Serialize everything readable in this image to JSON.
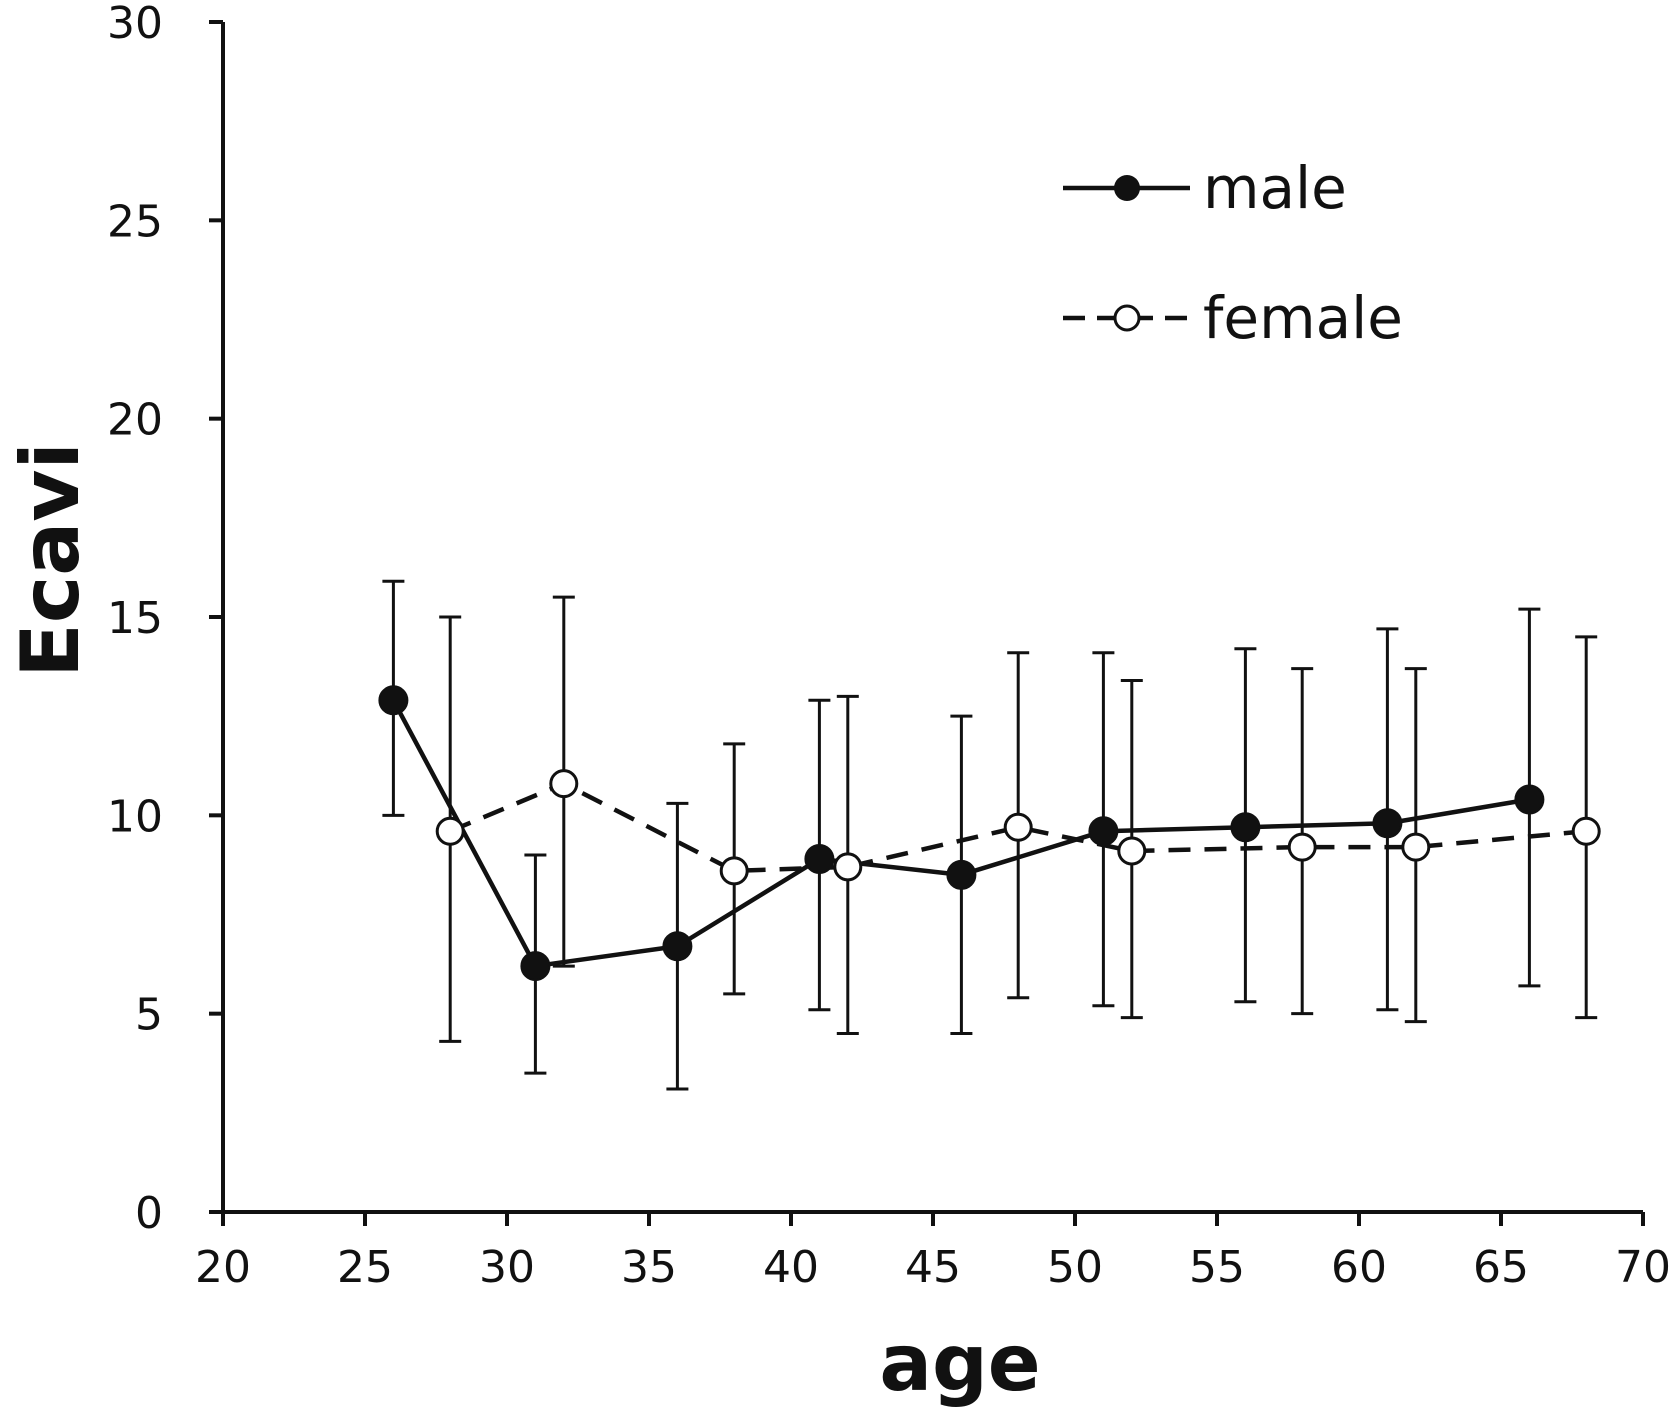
{
  "chart_data": {
    "type": "line",
    "title": "",
    "xlabel": "age",
    "ylabel": "Ecavi",
    "xlim": [
      20,
      70
    ],
    "ylim": [
      0,
      30
    ],
    "xticks": [
      20,
      25,
      30,
      35,
      40,
      45,
      50,
      55,
      60,
      65,
      70
    ],
    "yticks": [
      0,
      5,
      10,
      15,
      20,
      25,
      30
    ],
    "grid": false,
    "legend": "top-right",
    "series": [
      {
        "name": "male",
        "style": "solid",
        "marker": "filled-circle",
        "color": "#111111",
        "points": [
          {
            "x": 26,
            "y": 12.9,
            "low": 10.0,
            "high": 15.9
          },
          {
            "x": 31,
            "y": 6.2,
            "low": 3.5,
            "high": 9.0
          },
          {
            "x": 36,
            "y": 6.7,
            "low": 3.1,
            "high": 10.3
          },
          {
            "x": 41,
            "y": 8.9,
            "low": 5.1,
            "high": 12.9
          },
          {
            "x": 46,
            "y": 8.5,
            "low": 4.5,
            "high": 12.5
          },
          {
            "x": 51,
            "y": 9.6,
            "low": 5.2,
            "high": 14.1
          },
          {
            "x": 56,
            "y": 9.7,
            "low": 5.3,
            "high": 14.2
          },
          {
            "x": 61,
            "y": 9.8,
            "low": 5.1,
            "high": 14.7
          },
          {
            "x": 66,
            "y": 10.4,
            "low": 5.7,
            "high": 15.2
          }
        ]
      },
      {
        "name": "female",
        "style": "dashed",
        "marker": "open-circle",
        "color": "#111111",
        "points": [
          {
            "x": 28,
            "y": 9.6,
            "low": 4.3,
            "high": 15.0
          },
          {
            "x": 32,
            "y": 10.8,
            "low": 6.2,
            "high": 15.5
          },
          {
            "x": 38,
            "y": 8.6,
            "low": 5.5,
            "high": 11.8
          },
          {
            "x": 42,
            "y": 8.7,
            "low": 4.5,
            "high": 13.0
          },
          {
            "x": 48,
            "y": 9.7,
            "low": 5.4,
            "high": 14.1
          },
          {
            "x": 52,
            "y": 9.1,
            "low": 4.9,
            "high": 13.4
          },
          {
            "x": 58,
            "y": 9.2,
            "low": 5.0,
            "high": 13.7
          },
          {
            "x": 62,
            "y": 9.2,
            "low": 4.8,
            "high": 13.7
          },
          {
            "x": 68,
            "y": 9.6,
            "low": 4.9,
            "high": 14.5
          }
        ]
      }
    ]
  }
}
